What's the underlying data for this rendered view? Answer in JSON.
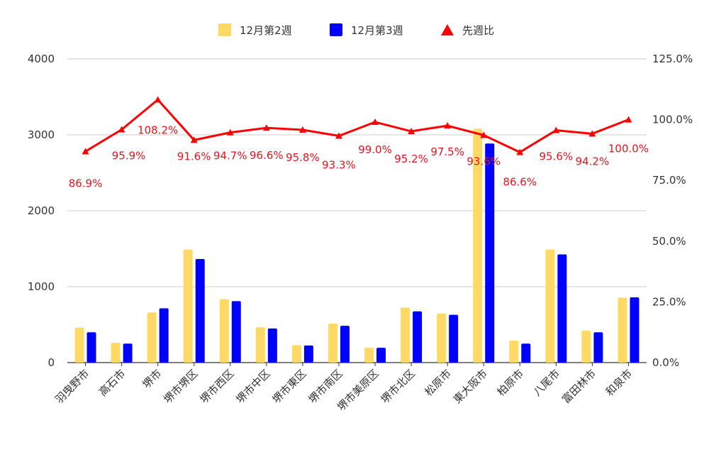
{
  "chart_data": {
    "type": "bar",
    "categories": [
      "羽曳野市",
      "高石市",
      "堺市",
      "堺市堺区",
      "堺市西区",
      "堺市中区",
      "堺市東区",
      "堺市南区",
      "堺市美原区",
      "堺市北区",
      "松原市",
      "東大阪市",
      "柏原市",
      "八尾市",
      "富田林市",
      "和泉市"
    ],
    "series": [
      {
        "name": "12月第2週",
        "axis": "left",
        "color": "#ffd966",
        "values": [
          460,
          260,
          660,
          1490,
          835,
          465,
          230,
          515,
          195,
          725,
          645,
          3080,
          290,
          1490,
          420,
          855
        ]
      },
      {
        "name": "12月第3週",
        "axis": "left",
        "color": "#0000ff",
        "values": [
          400,
          250,
          715,
          1365,
          810,
          450,
          225,
          485,
          195,
          675,
          630,
          2885,
          250,
          1425,
          400,
          860
        ]
      },
      {
        "name": "先週比",
        "axis": "right",
        "type": "line",
        "color": "#ff0000",
        "marker": "triangle",
        "values": [
          86.9,
          95.9,
          108.2,
          91.6,
          94.7,
          96.6,
          95.8,
          93.3,
          99.0,
          95.2,
          97.5,
          93.6,
          86.6,
          95.6,
          94.2,
          100.0
        ],
        "labels": [
          "86.9%",
          "95.9%",
          "108.2%",
          "91.6%",
          "94.7%",
          "96.6%",
          "95.8%",
          "93.3%",
          "99.0%",
          "95.2%",
          "97.5%",
          "93.6%",
          "86.6%",
          "95.6%",
          "94.2%",
          "100.0%"
        ]
      }
    ],
    "y_left": {
      "ylim": [
        0,
        4000
      ],
      "ticks": [
        0,
        1000,
        2000,
        3000,
        4000
      ],
      "tick_labels": [
        "0",
        "1000",
        "2000",
        "3000",
        "4000"
      ]
    },
    "y_right": {
      "ylim": [
        0,
        125
      ],
      "ticks": [
        0,
        25,
        50,
        75,
        100,
        125
      ],
      "tick_labels": [
        "0.0%",
        "25.0%",
        "50.0%",
        "75.0%",
        "100.0%",
        "125.0%"
      ]
    },
    "grid": true,
    "legend_position": "top-center"
  }
}
